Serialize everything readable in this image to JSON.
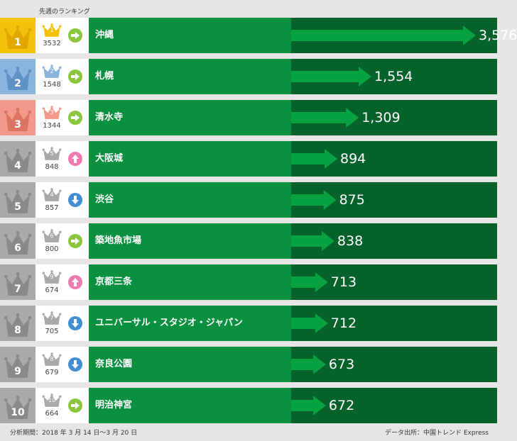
{
  "header_note": "先週のランキング",
  "footer": {
    "period": "分析期間：2018 年 3 月 14 日〜3 月 20 日",
    "source": "データ出所：中国トレンド Express"
  },
  "colors": {
    "gold": "#f5c20a",
    "blue": "#88b4de",
    "salmon": "#f2998a",
    "gray": "#a9a9a9",
    "bar": "#0b9040",
    "bar_dark": "#05622b",
    "arrow": "#08a243",
    "trend_same": "#8cc63f",
    "trend_up": "#ee7ab0",
    "trend_down": "#3f8fd2"
  },
  "chart_data": {
    "type": "bar",
    "title": "",
    "categories": [
      "沖縄",
      "札幌",
      "清水寺",
      "大阪城",
      "渋谷",
      "築地魚市場",
      "京都三条",
      "ユニバーサル・スタジオ・ジャパン",
      "奈良公園",
      "明治神宮"
    ],
    "series": [
      {
        "values": [
          3576,
          1554,
          1309,
          894,
          875,
          838,
          713,
          712,
          673,
          672
        ]
      }
    ],
    "value_labels": [
      "3,576",
      "1,554",
      "1,309",
      "894",
      "875",
      "838",
      "713",
      "712",
      "673",
      "672"
    ],
    "ranks": [
      "1",
      "2",
      "3",
      "4",
      "5",
      "6",
      "7",
      "8",
      "9",
      "10"
    ],
    "previous_rank": [
      "1",
      "2",
      "3",
      "5",
      "4",
      "6",
      "9",
      "7",
      "8",
      "10"
    ],
    "previous_value": [
      "3532",
      "1548",
      "1344",
      "848",
      "857",
      "800",
      "674",
      "705",
      "679",
      "664"
    ],
    "trend": [
      "same",
      "same",
      "same",
      "up",
      "down",
      "same",
      "up",
      "down",
      "down",
      "same"
    ],
    "rank_colors": [
      "gold",
      "blue",
      "salmon",
      "gray",
      "gray",
      "gray",
      "gray",
      "gray",
      "gray",
      "gray"
    ],
    "grid": false,
    "legend": "none"
  }
}
